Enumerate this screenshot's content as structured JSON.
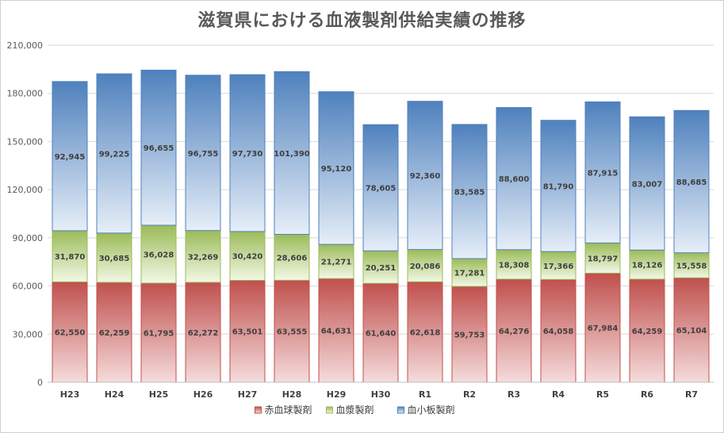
{
  "chart_data": {
    "type": "bar",
    "stacked": true,
    "title": "滋賀県における血液製剤供給実績の推移",
    "categories": [
      "H23",
      "H24",
      "H25",
      "H26",
      "H27",
      "H28",
      "H29",
      "H30",
      "R1",
      "R2",
      "R3",
      "R4",
      "R5",
      "R6",
      "R7"
    ],
    "series": [
      {
        "name": "赤血球製剤",
        "color": "#c0504d",
        "color_light": "#f5dcdc",
        "values": [
          62550,
          62259,
          61795,
          62272,
          63501,
          63555,
          64631,
          61640,
          62618,
          59753,
          64276,
          64058,
          67984,
          64259,
          65104
        ],
        "labels": [
          "62,550",
          "62,259",
          "61,795",
          "62,272",
          "63,501",
          "63,555",
          "64,631",
          "61,640",
          "62,618",
          "59,753",
          "64,276",
          "64,058",
          "67,984",
          "64,259",
          "65,104"
        ]
      },
      {
        "name": "血漿製剤",
        "color": "#9bbb59",
        "color_light": "#f3f8e6",
        "values": [
          31870,
          30685,
          36028,
          32269,
          30420,
          28606,
          21271,
          20251,
          20086,
          17281,
          18308,
          17366,
          18797,
          18126,
          15558
        ],
        "labels": [
          "31,870",
          "30,685",
          "36,028",
          "32,269",
          "30,420",
          "28,606",
          "21,271",
          "20,251",
          "20,086",
          "17,281",
          "18,308",
          "17,366",
          "18,797",
          "18,126",
          "15,558"
        ]
      },
      {
        "name": "血小板製剤",
        "color": "#4f81bd",
        "color_light": "#e6eef8",
        "values": [
          92945,
          99225,
          96655,
          96755,
          97730,
          101390,
          95120,
          78605,
          92360,
          83585,
          88600,
          81790,
          87915,
          83007,
          88685
        ],
        "labels": [
          "92,945",
          "99,225",
          "96,655",
          "96,755",
          "97,730",
          "101,390",
          "95,120",
          "78,605",
          "92,360",
          "83,585",
          "88,600",
          "81,790",
          "87,915",
          "83,007",
          "88,685"
        ]
      }
    ],
    "y_ticks": [
      0,
      30000,
      60000,
      90000,
      120000,
      150000,
      180000,
      210000
    ],
    "y_tick_labels": [
      "0",
      "30,000",
      "60,000",
      "90,000",
      "120,000",
      "150,000",
      "180,000",
      "210,000"
    ],
    "ylim": [
      0,
      210000
    ],
    "grid": true,
    "legend_position": "bottom"
  }
}
